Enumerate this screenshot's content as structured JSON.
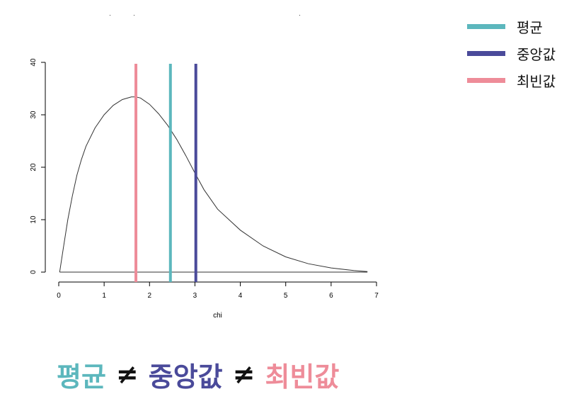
{
  "chart_data": {
    "type": "line",
    "xlabel": "chi",
    "ylabel": "",
    "xlim": [
      0,
      7
    ],
    "ylim": [
      0,
      40
    ],
    "x_ticks": [
      "0",
      "1",
      "2",
      "3",
      "4",
      "5",
      "6",
      "7"
    ],
    "y_ticks": [
      "0",
      "10",
      "20",
      "30",
      "40"
    ],
    "curve": {
      "x": [
        0.02,
        0.1,
        0.2,
        0.3,
        0.4,
        0.5,
        0.6,
        0.8,
        1.0,
        1.2,
        1.4,
        1.6,
        1.7,
        1.8,
        2.0,
        2.2,
        2.4,
        2.6,
        2.8,
        3.0,
        3.2,
        3.5,
        4.0,
        4.5,
        5.0,
        5.5,
        6.0,
        6.5,
        6.8
      ],
      "y": [
        0.0,
        4.5,
        10.0,
        14.5,
        18.5,
        21.5,
        24.0,
        27.5,
        30.0,
        31.8,
        32.9,
        33.4,
        33.4,
        33.2,
        32.0,
        30.2,
        28.0,
        25.3,
        22.2,
        18.9,
        15.7,
        12.0,
        8.0,
        5.0,
        2.9,
        1.6,
        0.8,
        0.3,
        0.1
      ]
    },
    "vlines": [
      {
        "name": "최빈값",
        "x": 1.7,
        "color": "#ee8c99"
      },
      {
        "name": "평균",
        "x": 2.46,
        "color": "#5cb7bd"
      },
      {
        "name": "중앙값",
        "x": 3.02,
        "color": "#4a4a9a"
      }
    ],
    "grid": false,
    "legend": "top-right"
  },
  "legend": {
    "items": [
      {
        "label": "평균",
        "color": "#5cb7bd"
      },
      {
        "label": "중앙값",
        "color": "#4a4a9a"
      },
      {
        "label": "최빈값",
        "color": "#ee8c99"
      }
    ]
  },
  "headline": {
    "mean": "평균",
    "neq1": "≠",
    "median": "중앙값",
    "neq2": "≠",
    "mode": "최빈값",
    "mean_color": "#5cb7bd",
    "median_color": "#4a4a9a",
    "mode_color": "#ee8c99"
  }
}
